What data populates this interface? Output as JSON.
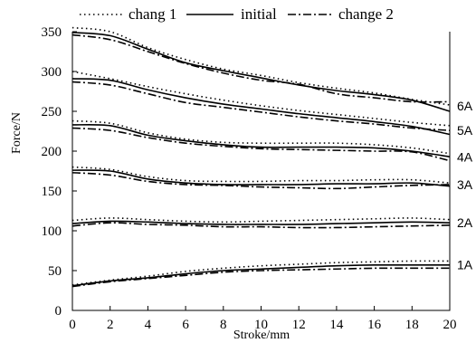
{
  "chart_data": {
    "type": "line",
    "title": "",
    "xlabel": "Stroke/mm",
    "ylabel": "Force/N",
    "xlim": [
      0,
      20
    ],
    "ylim": [
      0,
      350
    ],
    "x_ticks": [
      "0",
      "2",
      "4",
      "6",
      "8",
      "10",
      "12",
      "14",
      "16",
      "18",
      "20"
    ],
    "y_ticks": [
      "0",
      "50",
      "100",
      "150",
      "200",
      "250",
      "300",
      "350"
    ],
    "legend": {
      "placement": "top",
      "entries": [
        {
          "label": "chang 1",
          "style": "dotted"
        },
        {
          "label": "initial",
          "style": "solid"
        },
        {
          "label": "change 2",
          "style": "dash-dot"
        }
      ]
    },
    "x": [
      0,
      2,
      4,
      6,
      8,
      10,
      12,
      14,
      16,
      18,
      20
    ],
    "groups": [
      {
        "name": "6A",
        "series": [
          {
            "name": "chang 1",
            "values": [
              355,
              350,
              330,
              315,
              303,
              295,
              286,
              279,
              273,
              265,
              258
            ]
          },
          {
            "name": "initial",
            "values": [
              349,
              345,
              328,
              311,
              301,
              292,
              283,
              276,
              271,
              264,
              250
            ]
          },
          {
            "name": "change 2",
            "values": [
              346,
              340,
              325,
              310,
              298,
              289,
              284,
              272,
              267,
              262,
              262
            ]
          }
        ]
      },
      {
        "name": "5A",
        "series": [
          {
            "name": "chang 1",
            "values": [
              300,
              291,
              281,
              272,
              264,
              257,
              251,
              246,
              241,
              236,
              232
            ]
          },
          {
            "name": "initial",
            "values": [
              291,
              289,
              277,
              267,
              259,
              253,
              247,
              242,
              237,
              231,
              221
            ]
          },
          {
            "name": "change 2",
            "values": [
              287,
              283,
              272,
              261,
              255,
              249,
              243,
              238,
              234,
              229,
              226
            ]
          }
        ]
      },
      {
        "name": "4A",
        "series": [
          {
            "name": "chang 1",
            "values": [
              238,
              235,
              223,
              215,
              211,
              210,
              210,
              210,
              208,
              204,
              197
            ]
          },
          {
            "name": "initial",
            "values": [
              233,
              232,
              220,
              213,
              208,
              205,
              205,
              205,
              204,
              200,
              193
            ]
          },
          {
            "name": "change 2",
            "values": [
              229,
              226,
              217,
              210,
              206,
              203,
              202,
              201,
              200,
              199,
              188
            ]
          }
        ]
      },
      {
        "name": "3A",
        "series": [
          {
            "name": "chang 1",
            "values": [
              180,
              177,
              168,
              163,
              162,
              162,
              163,
              163,
              164,
              164,
              160
            ]
          },
          {
            "name": "initial",
            "values": [
              176,
              175,
              165,
              160,
              158,
              158,
              158,
              159,
              159,
              160,
              156
            ]
          },
          {
            "name": "change 2",
            "values": [
              173,
              170,
              162,
              158,
              157,
              155,
              154,
              153,
              155,
              157,
              158
            ]
          }
        ]
      },
      {
        "name": "2A",
        "series": [
          {
            "name": "chang 1",
            "values": [
              113,
              116,
              114,
              112,
              111,
              112,
              113,
              114,
              115,
              116,
              114
            ]
          },
          {
            "name": "initial",
            "values": [
              109,
              112,
              111,
              109,
              108,
              108,
              108,
              109,
              110,
              111,
              110
            ]
          },
          {
            "name": "change 2",
            "values": [
              106,
              110,
              108,
              107,
              105,
              105,
              104,
              104,
              105,
              106,
              107
            ]
          }
        ]
      },
      {
        "name": "1A",
        "series": [
          {
            "name": "chang 1",
            "values": [
              32,
              38,
              43,
              49,
              53,
              56,
              58,
              60,
              61,
              62,
              62
            ]
          },
          {
            "name": "initial",
            "values": [
              31,
              37,
              41,
              46,
              50,
              52,
              54,
              56,
              57,
              57,
              57
            ]
          },
          {
            "name": "change 2",
            "values": [
              30,
              36,
              40,
              44,
              48,
              50,
              51,
              52,
              53,
              53,
              53
            ]
          }
        ]
      }
    ]
  }
}
